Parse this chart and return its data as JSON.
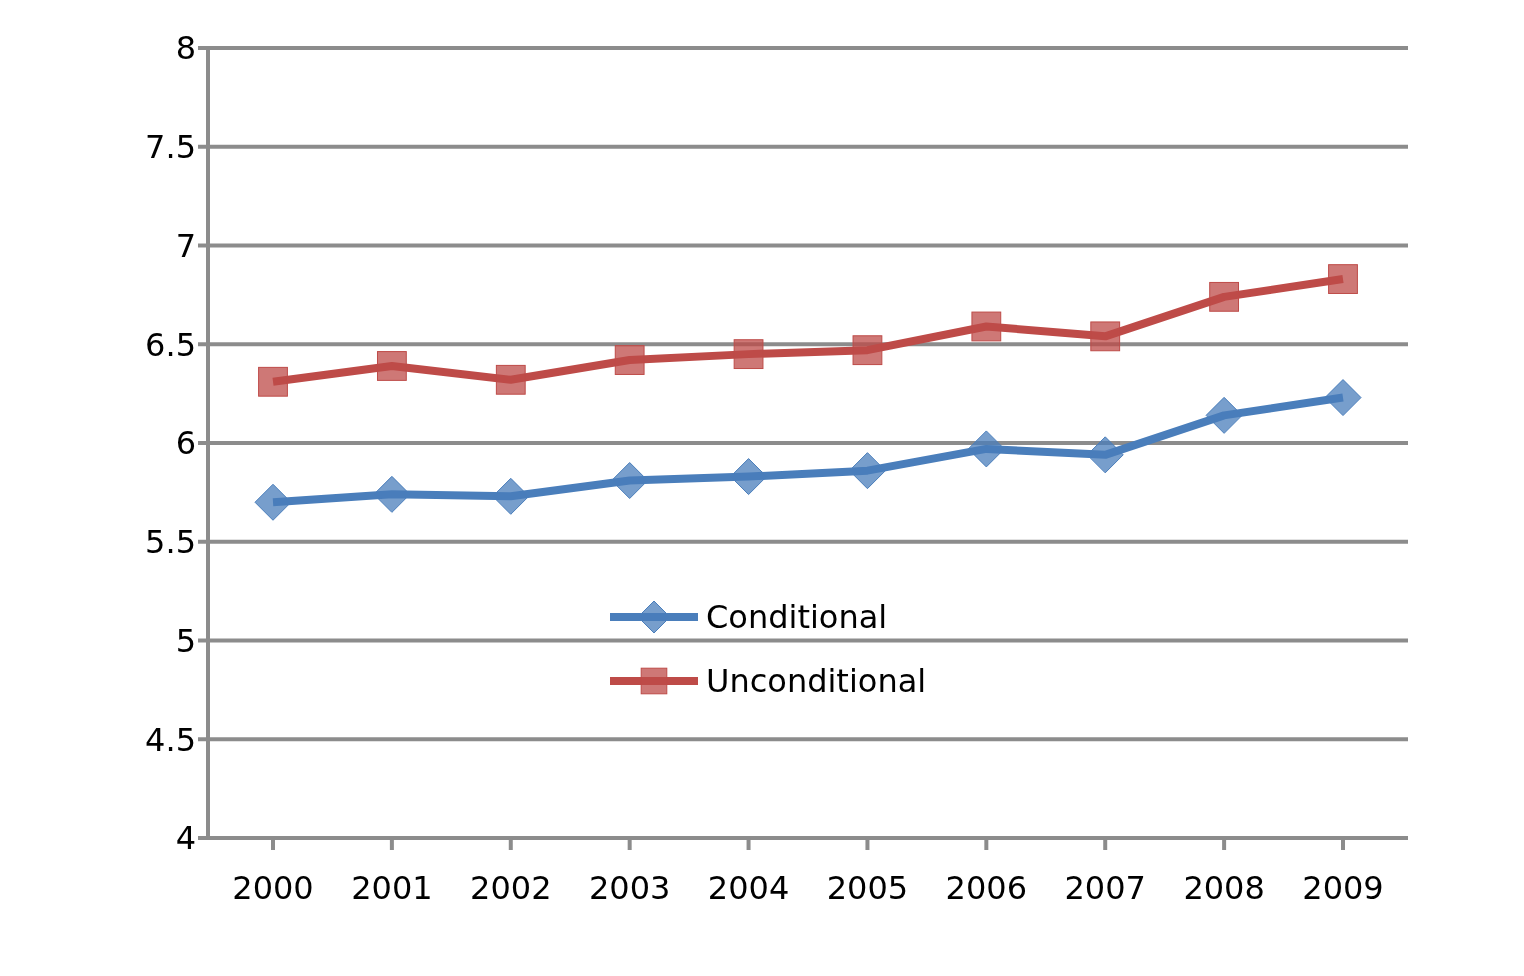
{
  "chart_data": {
    "type": "line",
    "categories": [
      "2000",
      "2001",
      "2002",
      "2003",
      "2004",
      "2005",
      "2006",
      "2007",
      "2008",
      "2009"
    ],
    "series": [
      {
        "name": "Conditional",
        "color": "#4a7ebb",
        "marker": "diamond",
        "values": [
          5.7,
          5.74,
          5.73,
          5.81,
          5.83,
          5.86,
          5.97,
          5.94,
          6.14,
          6.23
        ]
      },
      {
        "name": "Unconditional",
        "color": "#be4b48",
        "marker": "square",
        "values": [
          6.31,
          6.39,
          6.32,
          6.42,
          6.45,
          6.47,
          6.59,
          6.54,
          6.74,
          6.83
        ]
      }
    ],
    "ylim": [
      4,
      8
    ],
    "yticks": [
      4,
      4.5,
      5,
      5.5,
      6,
      6.5,
      7,
      7.5,
      8
    ],
    "grid": "y",
    "legend": "center",
    "line_style": "solid"
  }
}
